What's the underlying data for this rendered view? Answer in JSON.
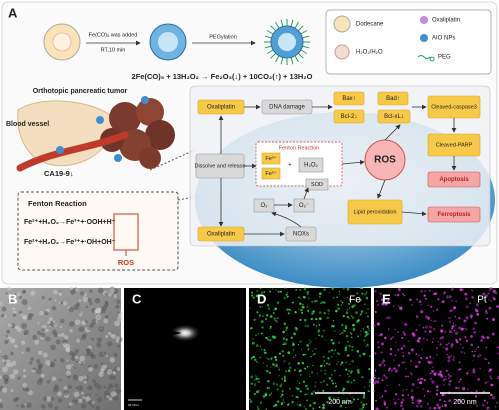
{
  "panel_a": {
    "label": "A",
    "synthesis": {
      "step1_line1": "Fe(CO)₅ was added",
      "step1_line2": "RT,10 min",
      "step2": "PEGylation"
    },
    "legend": [
      "Dodecane",
      "Oxaliplatin",
      "H₂O₂/H₂O",
      "AIO NPs",
      "PEG"
    ],
    "equation": "2Fe(CO)₅ + 13H₂O₂ → Fe₂O₃(↓) + 10CO₂(↑) + 13H₂O",
    "tumor_label": "Orthotopic pancreatic tumor",
    "vessel_label": "Blood vessel",
    "marker_label": "CA19-9↓",
    "fenton_box": {
      "title": "Fenton Reaction",
      "reactions": [
        "Fe²⁺+H₂O₂→Fe³⁺+·OOH+H⁺",
        "Fe²⁺+H₂O₂→Fe³⁺+·OH+OH⁻"
      ],
      "product": "ROS"
    },
    "mechanism": {
      "oxaliplatin_top": "Oxaliplatin",
      "dna_damage": "DNA damage",
      "bax": "Bax↑",
      "bad": "Bad↑",
      "bcl2": "Bcl-2↓",
      "bclxl": "Bcl-xL↓",
      "cleaved_caspase3": "Cleaved-caspase3",
      "cleaved_parp": "Cleaved-PARP",
      "apoptosis": "Apoptosis",
      "dissolve": "Dissolve and release",
      "fenton": "Fenton Reaction",
      "fe3": "Fe³⁺",
      "fe2": "Fe²⁺",
      "plus": "+",
      "h2o2": "H₂O₂",
      "ros": "ROS",
      "sod": "SOD",
      "o2": "O₂",
      "o2_radical": "O₂⁻",
      "lipid": "Lipid peroxidation",
      "ferroptosis": "Ferroptosis",
      "oxaliplatin_bottom": "Oxaliplatin",
      "noxs": "NOXs"
    }
  },
  "panels": [
    {
      "label": "B"
    },
    {
      "label": "C",
      "scale": "20 1/nm"
    },
    {
      "label": "D",
      "element": "Fe",
      "scale": "200 nm"
    },
    {
      "label": "E",
      "element": "Pt",
      "scale": "200 nm"
    }
  ]
}
